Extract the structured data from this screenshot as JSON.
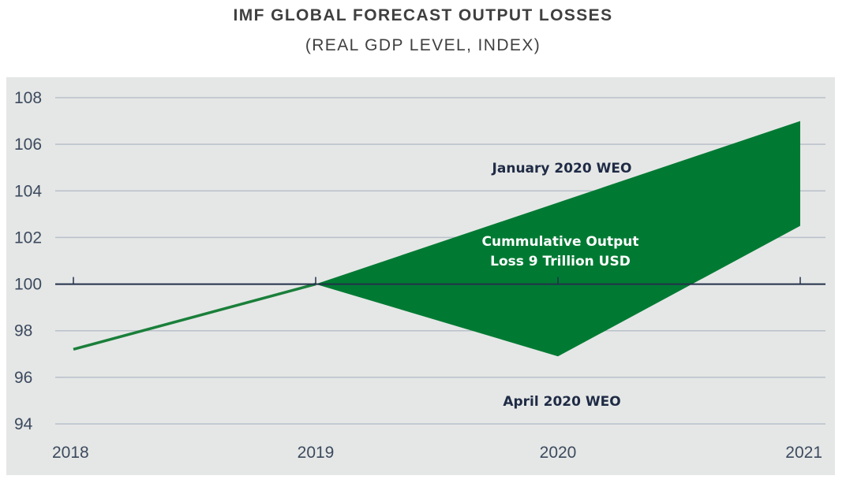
{
  "chart_data": {
    "type": "area",
    "title": "IMF GLOBAL FORECAST OUTPUT LOSSES",
    "subtitle": "(REAL GDP LEVEL, INDEX)",
    "x": [
      "2018",
      "2019",
      "2020",
      "2021"
    ],
    "ylim": [
      94,
      108
    ],
    "y_ticks": [
      94,
      96,
      98,
      100,
      102,
      104,
      106,
      108
    ],
    "baseline": 100,
    "grid": true,
    "series": [
      {
        "name": "January 2020 WEO",
        "x": [
          "2018",
          "2019",
          "2020",
          "2021"
        ],
        "values": [
          97.2,
          100.0,
          103.5,
          107.0
        ]
      },
      {
        "name": "April 2020 WEO",
        "x": [
          "2019",
          "2020",
          "2021"
        ],
        "values": [
          100.0,
          96.9,
          102.5
        ]
      }
    ],
    "shaded_region": {
      "between": [
        "January 2020 WEO",
        "April 2020 WEO"
      ],
      "label_lines": [
        "Cummulative Output",
        "Loss 9 Trillion USD"
      ]
    },
    "colors": {
      "fill": "#007a33",
      "line": "#1a7f3a",
      "background": "#e5e7e6",
      "grid": "#b9c0ca",
      "baseline": "#23304a",
      "text": "#3c4a5e"
    }
  }
}
